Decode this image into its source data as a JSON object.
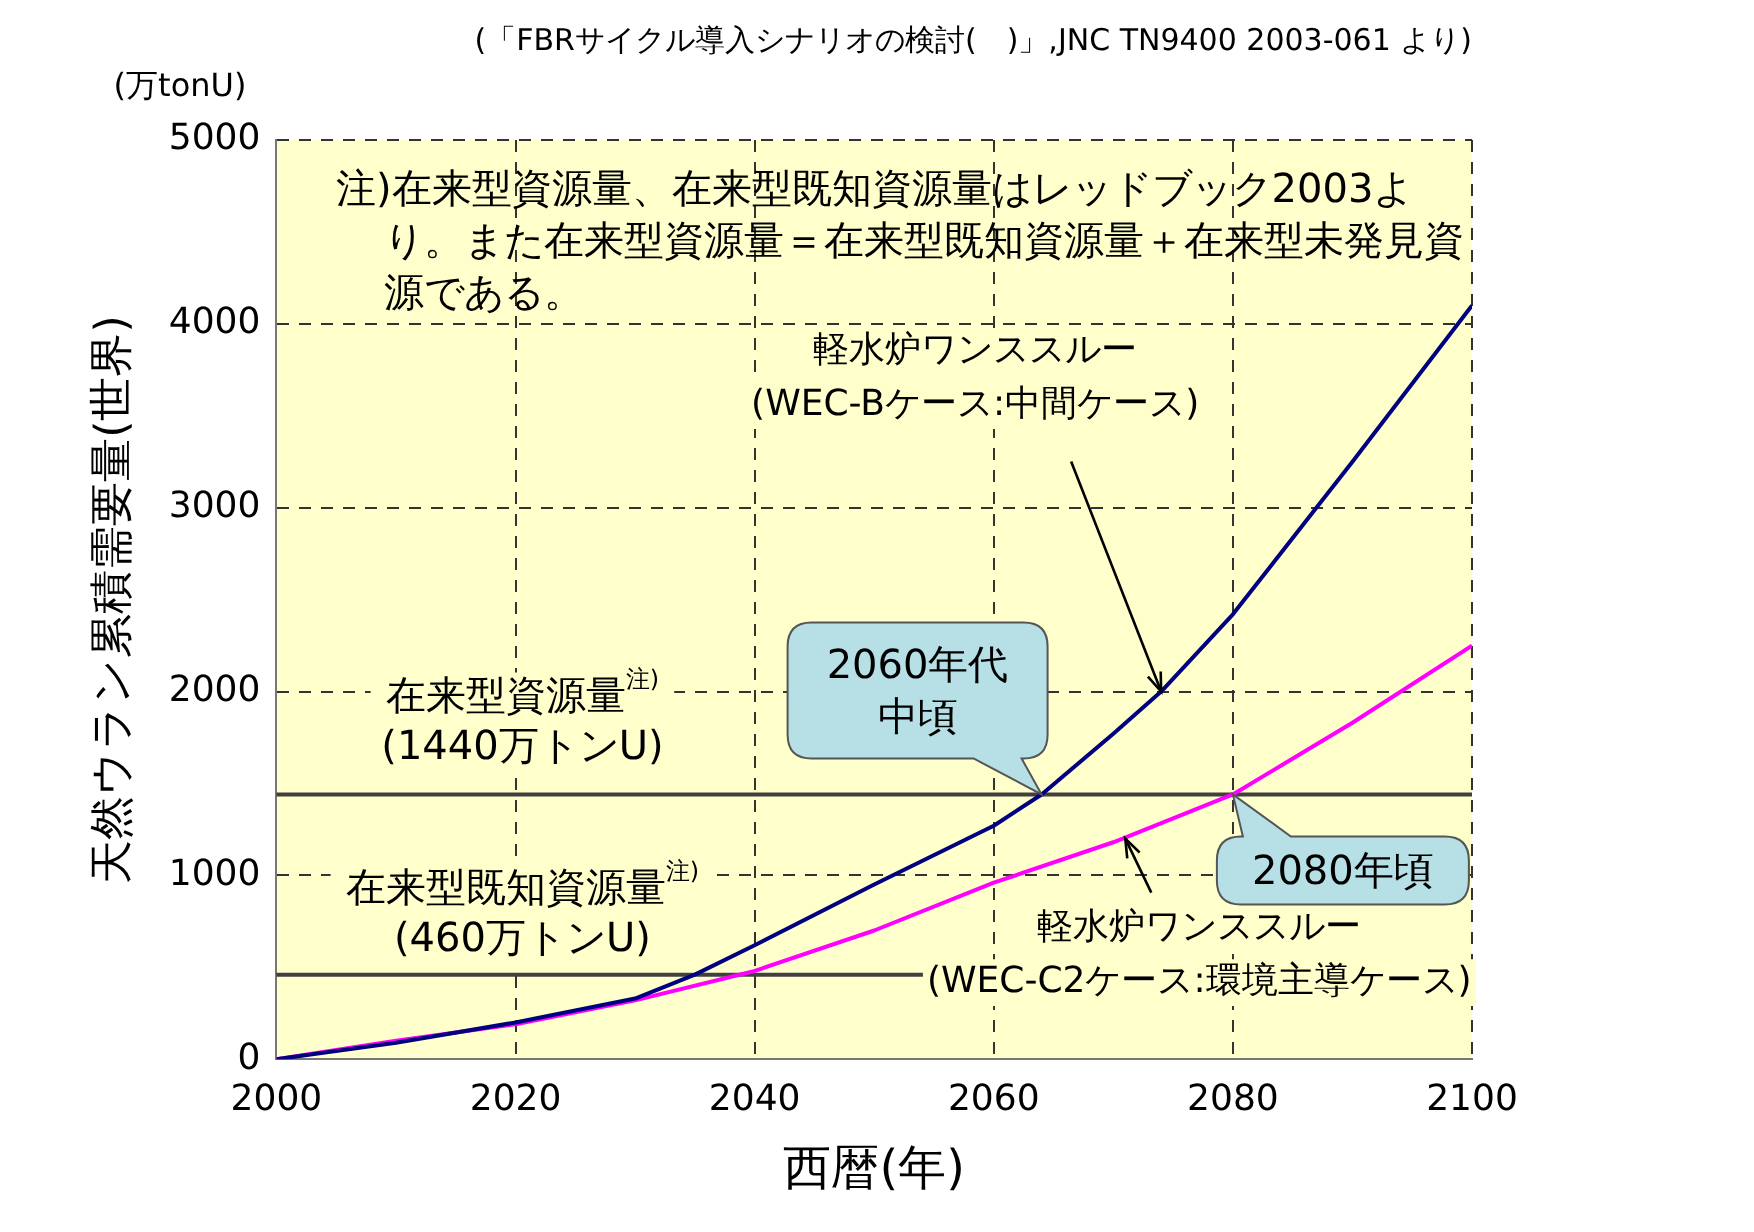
{
  "chart_data": {
    "type": "line",
    "title": "(「FBRサイクル導入シナリオの検討(　)」,JNC TN9400 2003-061 より)",
    "xlabel": "西暦(年)",
    "ylabel": "天然ウラン累積需要量(世界)",
    "x": [
      2000,
      2010,
      2020,
      2030,
      2035,
      2040,
      2050,
      2060,
      2064,
      2070,
      2074,
      2080,
      2090,
      2100
    ],
    "series": [
      {
        "color": "#000080",
        "values": [
          0,
          90,
          200,
          330,
          460,
          620,
          950,
          1270,
          1440,
          1770,
          2000,
          2420,
          3250,
          4100
        ]
      },
      {
        "color": "#ff00ff",
        "x": [
          2000,
          2010,
          2020,
          2030,
          2040,
          2050,
          2060,
          2070,
          2080,
          2090,
          2100
        ],
        "values": [
          0,
          100,
          190,
          320,
          480,
          700,
          960,
          1180,
          1440,
          1830,
          2250
        ]
      }
    ],
    "xlim": [
      2000,
      2100
    ],
    "xticks": [
      2000,
      2020,
      2040,
      2060,
      2080,
      2100
    ],
    "ylim": [
      0,
      5000
    ],
    "yticks": [
      0,
      1000,
      2000,
      3000,
      4000,
      5000
    ],
    "grid": true,
    "legend": false,
    "marker": "none",
    "line_style": "solid",
    "ref_lines": [
      {
        "axis": "y",
        "value": 1440,
        "label": "在来型資源量$^{注)}$\n(1440万トンU)",
        "color": "#404040"
      },
      {
        "axis": "y",
        "value": 460,
        "label": "在来型既知資源量$^{注)}$\n(460万トンU)",
        "color": "#404040"
      }
    ],
    "annotations": [
      "(万tonU)",
      "注)在来型資源量、在来型既知資源量はレッドブック2003より。また在来型資源量＝在来型既知資源量＋在来型未発見資源である。",
      {
        "text": "軽水炉ワンススルー\n(WEC-Bケース:中間ケース)",
        "x": 2074,
        "y": 2000
      },
      {
        "text": "2060年代中頃",
        "x": 2064,
        "y": 1440
      },
      {
        "text": "2080年頃",
        "x": 2080,
        "y": 1440
      },
      {
        "text": "軽水炉ワンススルー\n(WEC-C2ケース:環境主導ケース)",
        "x": 2071,
        "y": 1200
      }
    ]
  }
}
